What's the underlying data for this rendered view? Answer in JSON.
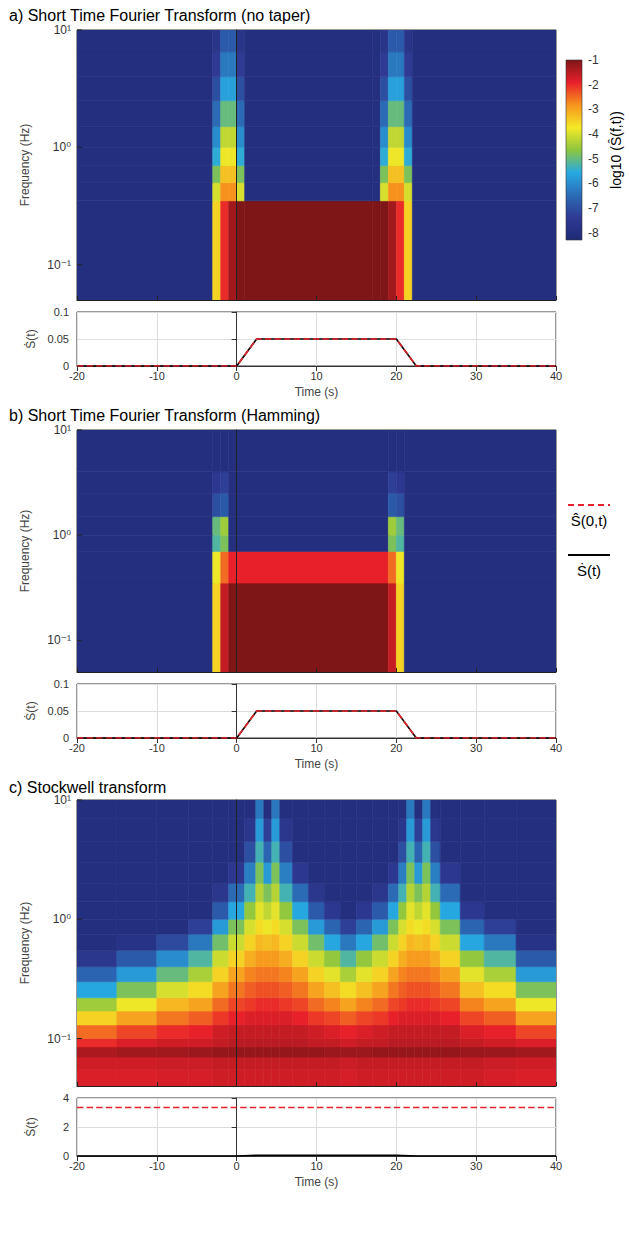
{
  "chart_data": [
    {
      "type": "heatmap",
      "title": "a) Short Time Fourier Transform (no taper)",
      "y_label": "Frequency (Hz)",
      "log": "y",
      "grid": false,
      "tick_labels": "y",
      "xlim": [
        -20,
        40
      ],
      "xticks": [
        -20,
        -10,
        0,
        10,
        20,
        30,
        40
      ],
      "ylim": [
        0.05,
        10
      ],
      "yticks": [
        {
          "value": 0.1,
          "label": "10⁻¹"
        },
        {
          "value": 1,
          "label": "10⁰"
        },
        {
          "value": 10,
          "label": "10¹"
        }
      ],
      "time_edges": [
        -20,
        -3,
        -2,
        -1,
        0,
        1,
        17,
        18,
        19,
        20,
        21,
        22,
        40
      ],
      "freq_edges": [
        0.05,
        0.35,
        0.5,
        0.7,
        1,
        1.5,
        2.5,
        4,
        6.5,
        10
      ],
      "cells": [
        [
          -8,
          -3.5,
          -2,
          -1.3,
          -1,
          -1,
          -1,
          -1,
          -1.3,
          -2,
          -3.5,
          -8
        ],
        [
          -8,
          -4,
          -2.8,
          -2.8,
          -4,
          -8,
          -8,
          -4,
          -2.8,
          -2.8,
          -4,
          -8
        ],
        [
          -8,
          -4.8,
          -3.3,
          -3.3,
          -4.8,
          -8,
          -8,
          -4.8,
          -3.3,
          -3.3,
          -4.8,
          -8
        ],
        [
          -8,
          -5.5,
          -3.8,
          -3.8,
          -5.5,
          -8,
          -8,
          -5.5,
          -3.8,
          -3.8,
          -5.5,
          -8
        ],
        [
          -8,
          -6,
          -4.2,
          -4.2,
          -6,
          -8,
          -8,
          -6,
          -4.2,
          -4.2,
          -6,
          -8
        ],
        [
          -8,
          -6.5,
          -5,
          -5,
          -6.5,
          -8,
          -8,
          -6.5,
          -5,
          -5,
          -6.5,
          -8
        ],
        [
          -8,
          -7,
          -5.7,
          -5.7,
          -7,
          -8,
          -8,
          -7,
          -5.7,
          -5.7,
          -7,
          -8
        ],
        [
          -8,
          -7.4,
          -6.3,
          -6.3,
          -7.4,
          -8,
          -8,
          -7.4,
          -6.3,
          -6.3,
          -7.4,
          -8
        ],
        [
          -8,
          -7.7,
          -6.8,
          -6.8,
          -7.7,
          -8,
          -8,
          -7.7,
          -6.8,
          -6.8,
          -7.7,
          -8
        ]
      ]
    },
    {
      "type": "line",
      "x_label": "Time (s)",
      "y_label": "Ṡ(t)",
      "grid": true,
      "legend": "right",
      "xlim": [
        -20,
        40
      ],
      "xticks": [
        -20,
        -10,
        0,
        10,
        20,
        30,
        40
      ],
      "ylim": [
        0,
        0.1
      ],
      "yticks": [
        0,
        0.05,
        0.1
      ],
      "series": [
        {
          "name": "Ŝ(0,t)",
          "color": "#e8202a",
          "line_style": "dashed",
          "x": [
            -20,
            0,
            2.5,
            20,
            22.5,
            40
          ],
          "values": [
            0,
            0,
            0.05,
            0.05,
            0,
            0
          ]
        },
        {
          "name": "Ṡ(t)",
          "color": "#000000",
          "line_style": "solid",
          "x": [
            -20,
            0,
            2.5,
            20,
            22.5,
            40
          ],
          "values": [
            0,
            0,
            0.05,
            0.05,
            0,
            0
          ]
        }
      ]
    },
    {
      "type": "heatmap",
      "title": "b) Short Time Fourier Transform (Hamming)",
      "y_label": "Frequency (Hz)",
      "log": "y",
      "grid": false,
      "tick_labels": "y",
      "xlim": [
        -20,
        40
      ],
      "xticks": [
        -20,
        -10,
        0,
        10,
        20,
        30,
        40
      ],
      "ylim": [
        0.05,
        10
      ],
      "yticks": [
        {
          "value": 0.1,
          "label": "10⁻¹"
        },
        {
          "value": 1,
          "label": "10⁰"
        },
        {
          "value": 10,
          "label": "10¹"
        }
      ],
      "time_edges": [
        -20,
        -3,
        -2,
        -1,
        19,
        20,
        21,
        40
      ],
      "freq_edges": [
        0.05,
        0.35,
        0.7,
        1,
        1.5,
        2.5,
        4,
        10
      ],
      "cells": [
        [
          -8,
          -3.5,
          -1.6,
          -1,
          -1.6,
          -3.5,
          -8
        ],
        [
          -8,
          -3.8,
          -2.5,
          -1.9,
          -2.5,
          -3.8,
          -8
        ],
        [
          -8,
          -5.2,
          -4.8,
          -8,
          -4.8,
          -5.2,
          -8
        ],
        [
          -8,
          -5,
          -4.5,
          -8,
          -4.5,
          -5,
          -8
        ],
        [
          -8,
          -7,
          -6.8,
          -8,
          -6.8,
          -7,
          -8
        ],
        [
          -8,
          -7.5,
          -7.3,
          -8,
          -7.3,
          -7.5,
          -8
        ],
        [
          -8,
          -8,
          -8,
          -8,
          -8,
          -8,
          -8
        ]
      ]
    },
    {
      "type": "line",
      "x_label": "Time (s)",
      "y_label": "Ṡ(t)",
      "grid": true,
      "xlim": [
        -20,
        40
      ],
      "xticks": [
        -20,
        -10,
        0,
        10,
        20,
        30,
        40
      ],
      "ylim": [
        0,
        0.1
      ],
      "yticks": [
        0,
        0.05,
        0.1
      ],
      "series": [
        {
          "name": "Ŝ(0,t)",
          "color": "#e8202a",
          "line_style": "dashed",
          "x": [
            -20,
            0,
            2.5,
            20,
            22.5,
            40
          ],
          "values": [
            0,
            0,
            0.05,
            0.05,
            0,
            0
          ]
        },
        {
          "name": "Ṡ(t)",
          "color": "#000000",
          "line_style": "solid",
          "x": [
            -20,
            0,
            2.5,
            20,
            22.5,
            40
          ],
          "values": [
            0,
            0,
            0.05,
            0.05,
            0,
            0
          ]
        }
      ]
    },
    {
      "type": "heatmap",
      "title": "c) Stockwell transform",
      "y_label": "Frequency (Hz)",
      "log": "y",
      "grid": false,
      "tick_labels": "y",
      "xlim": [
        -20,
        40
      ],
      "xticks": [
        -20,
        -10,
        0,
        10,
        20,
        30,
        40
      ],
      "ylim": [
        0.04,
        10
      ],
      "yticks": [
        {
          "value": 0.1,
          "label": "10⁻¹"
        },
        {
          "value": 1,
          "label": "10⁰"
        },
        {
          "value": 10,
          "label": "10¹"
        }
      ],
      "time_edges": [
        -20,
        -15,
        -10,
        -6,
        -3,
        -1,
        1,
        2.4,
        3.4,
        4.4,
        5.4,
        7,
        9,
        11,
        13,
        15,
        17,
        19,
        20.3,
        21.3,
        22.3,
        23.3,
        24.3,
        25.5,
        28,
        31,
        35,
        40
      ],
      "freq_edges": [
        0.04,
        0.055,
        0.07,
        0.085,
        0.1,
        0.13,
        0.17,
        0.22,
        0.3,
        0.4,
        0.55,
        0.75,
        1,
        1.4,
        2,
        3,
        4.5,
        7,
        10
      ],
      "cells": [
        [
          -1.8,
          -1.8,
          -1.75,
          -1.75,
          -1.7,
          -1.7,
          -1.7,
          -1.7,
          -1.7,
          -1.7,
          -1.7,
          -1.7,
          -1.7,
          -1.7,
          -1.75,
          -1.7,
          -1.7,
          -1.7,
          -1.7,
          -1.7,
          -1.7,
          -1.7,
          -1.7,
          -1.7,
          -1.7,
          -1.75,
          -1.8
        ],
        [
          -1.7,
          -1.7,
          -1.65,
          -1.65,
          -1.6,
          -1.6,
          -1.6,
          -1.6,
          -1.6,
          -1.6,
          -1.6,
          -1.6,
          -1.6,
          -1.6,
          -1.65,
          -1.6,
          -1.6,
          -1.6,
          -1.6,
          -1.6,
          -1.6,
          -1.6,
          -1.6,
          -1.6,
          -1.6,
          -1.65,
          -1.7
        ],
        [
          -1.4,
          -1.3,
          -1.3,
          -1.25,
          -1.2,
          -1.2,
          -1.2,
          -1.2,
          -1.2,
          -1.2,
          -1.2,
          -1.2,
          -1.2,
          -1.25,
          -1.25,
          -1.25,
          -1.2,
          -1.2,
          -1.2,
          -1.2,
          -1.2,
          -1.2,
          -1.2,
          -1.2,
          -1.25,
          -1.25,
          -1.3
        ],
        [
          -2,
          -1.8,
          -1.7,
          -1.7,
          -1.6,
          -1.5,
          -1.5,
          -1.5,
          -1.5,
          -1.5,
          -1.5,
          -1.5,
          -1.6,
          -1.6,
          -1.7,
          -1.6,
          -1.6,
          -1.5,
          -1.5,
          -1.5,
          -1.5,
          -1.5,
          -1.5,
          -1.5,
          -1.6,
          -1.7,
          -1.8
        ],
        [
          -2.5,
          -2.2,
          -2,
          -1.9,
          -1.7,
          -1.6,
          -1.6,
          -1.6,
          -1.6,
          -1.6,
          -1.6,
          -1.6,
          -1.7,
          -1.8,
          -1.9,
          -1.8,
          -1.7,
          -1.6,
          -1.6,
          -1.6,
          -1.6,
          -1.6,
          -1.6,
          -1.6,
          -1.8,
          -1.9,
          -2.2
        ],
        [
          -3.5,
          -3,
          -2.6,
          -2.4,
          -2.1,
          -1.9,
          -1.8,
          -1.8,
          -1.8,
          -1.8,
          -1.8,
          -1.9,
          -2.1,
          -2.2,
          -2.4,
          -2.2,
          -2.1,
          -1.9,
          -1.8,
          -1.8,
          -1.8,
          -1.8,
          -1.8,
          -1.9,
          -2.2,
          -2.4,
          -3
        ],
        [
          -4.5,
          -3.8,
          -3.2,
          -3,
          -2.5,
          -2.2,
          -2.1,
          -2,
          -2,
          -2,
          -2.1,
          -2.2,
          -2.5,
          -2.7,
          -3,
          -2.7,
          -2.5,
          -2.2,
          -2.1,
          -2,
          -2,
          -2,
          -2.1,
          -2.2,
          -2.7,
          -3,
          -3.8
        ],
        [
          -5.6,
          -4.8,
          -4,
          -3.6,
          -3,
          -2.6,
          -2.4,
          -2.3,
          -2.3,
          -2.3,
          -2.4,
          -2.6,
          -3,
          -3.3,
          -3.6,
          -3.3,
          -3,
          -2.6,
          -2.4,
          -2.3,
          -2.3,
          -2.3,
          -2.4,
          -2.6,
          -3.3,
          -3.6,
          -4.8
        ],
        [
          -6.6,
          -5.8,
          -5,
          -4.4,
          -3.5,
          -3,
          -2.7,
          -2.6,
          -2.6,
          -2.6,
          -2.7,
          -3,
          -3.5,
          -3.9,
          -4.4,
          -3.9,
          -3.5,
          -3,
          -2.7,
          -2.6,
          -2.6,
          -2.6,
          -2.7,
          -3,
          -3.9,
          -4.4,
          -5.8
        ],
        [
          -7.6,
          -6.8,
          -6,
          -5.2,
          -4.1,
          -3.5,
          -3.1,
          -2.9,
          -2.9,
          -2.9,
          -3.1,
          -3.5,
          -4.1,
          -4.6,
          -5.2,
          -4.6,
          -4.1,
          -3.5,
          -3.1,
          -2.9,
          -2.9,
          -2.9,
          -3.1,
          -3.5,
          -4.6,
          -5.2,
          -6.8
        ],
        [
          -8,
          -7.8,
          -7.1,
          -6.3,
          -4.9,
          -4.1,
          -3.5,
          -3.2,
          -3.3,
          -3.2,
          -3.5,
          -4.1,
          -4.9,
          -5.6,
          -6.3,
          -5.6,
          -4.9,
          -4.1,
          -3.5,
          -3.2,
          -3.3,
          -3.2,
          -3.5,
          -4.1,
          -5.6,
          -6.3,
          -7.8
        ],
        [
          -8,
          -8,
          -8,
          -7.3,
          -5.8,
          -4.8,
          -4,
          -3.6,
          -3.8,
          -3.6,
          -4,
          -4.8,
          -5.8,
          -6.6,
          -7.3,
          -6.6,
          -5.8,
          -4.8,
          -4,
          -3.6,
          -3.8,
          -3.6,
          -4,
          -4.8,
          -6.6,
          -7.3,
          -8
        ],
        [
          -8,
          -8,
          -8,
          -8,
          -6.8,
          -5.6,
          -4.6,
          -3.9,
          -4.2,
          -3.9,
          -4.6,
          -5.6,
          -6.8,
          -7.5,
          -8,
          -7.5,
          -6.8,
          -5.6,
          -4.6,
          -3.9,
          -4.2,
          -3.9,
          -4.6,
          -5.6,
          -7.5,
          -8,
          -8
        ],
        [
          -8,
          -8,
          -8,
          -8,
          -7.6,
          -6.5,
          -5.3,
          -4.3,
          -4.8,
          -4.3,
          -5.3,
          -6.5,
          -7.6,
          -8,
          -8,
          -8,
          -7.6,
          -6.5,
          -5.3,
          -4.3,
          -4.8,
          -4.3,
          -5.3,
          -6.5,
          -8,
          -8,
          -8
        ],
        [
          -8,
          -8,
          -8,
          -8,
          -8,
          -7.5,
          -6.2,
          -4.8,
          -5.8,
          -4.8,
          -6.2,
          -7.5,
          -8,
          -8,
          -8,
          -8,
          -8,
          -7.5,
          -6.2,
          -4.8,
          -5.8,
          -4.8,
          -6.2,
          -7.5,
          -8,
          -8,
          -8
        ],
        [
          -8,
          -8,
          -8,
          -8,
          -8,
          -8,
          -7,
          -5.3,
          -6.6,
          -5.3,
          -7,
          -8,
          -8,
          -8,
          -8,
          -8,
          -8,
          -8,
          -7,
          -5.3,
          -6.6,
          -5.3,
          -7,
          -8,
          -8,
          -8,
          -8
        ],
        [
          -8,
          -8,
          -8,
          -8,
          -8,
          -8,
          -7.6,
          -5.8,
          -7.3,
          -5.8,
          -7.6,
          -8,
          -8,
          -8,
          -8,
          -8,
          -8,
          -8,
          -7.6,
          -5.8,
          -7.3,
          -5.8,
          -7.6,
          -8,
          -8,
          -8,
          -8
        ],
        [
          -8,
          -8,
          -8,
          -8,
          -8,
          -8,
          -8,
          -6.3,
          -8,
          -6.3,
          -8,
          -8,
          -8,
          -8,
          -8,
          -8,
          -8,
          -8,
          -8,
          -6.3,
          -8,
          -6.3,
          -8,
          -8,
          -8,
          -8,
          -8
        ]
      ]
    },
    {
      "type": "line",
      "x_label": "Time (s)",
      "y_label": "Ṡ(t)",
      "grid": true,
      "xlim": [
        -20,
        40
      ],
      "xticks": [
        -20,
        -10,
        0,
        10,
        20,
        30,
        40
      ],
      "ylim": [
        0,
        4
      ],
      "yticks": [
        0,
        2,
        4
      ],
      "series": [
        {
          "name": "Ŝ(0,t)",
          "color": "#e8202a",
          "line_style": "dashed",
          "x": [
            -20,
            40
          ],
          "values": [
            3.35,
            3.35
          ]
        },
        {
          "name": "Ṡ(t)",
          "color": "#000000",
          "line_style": "solid",
          "x": [
            -20,
            0,
            2.5,
            20,
            22.5,
            40
          ],
          "values": [
            0,
            0,
            0.05,
            0.05,
            0,
            0
          ]
        }
      ]
    },
    {
      "type": "colorbar",
      "label": "log10 (Ŝ(f,t))",
      "range": [
        -8.3,
        -1
      ],
      "ticks": [
        -8,
        -7,
        -6,
        -5,
        -4,
        -3,
        -2,
        -1
      ]
    }
  ]
}
